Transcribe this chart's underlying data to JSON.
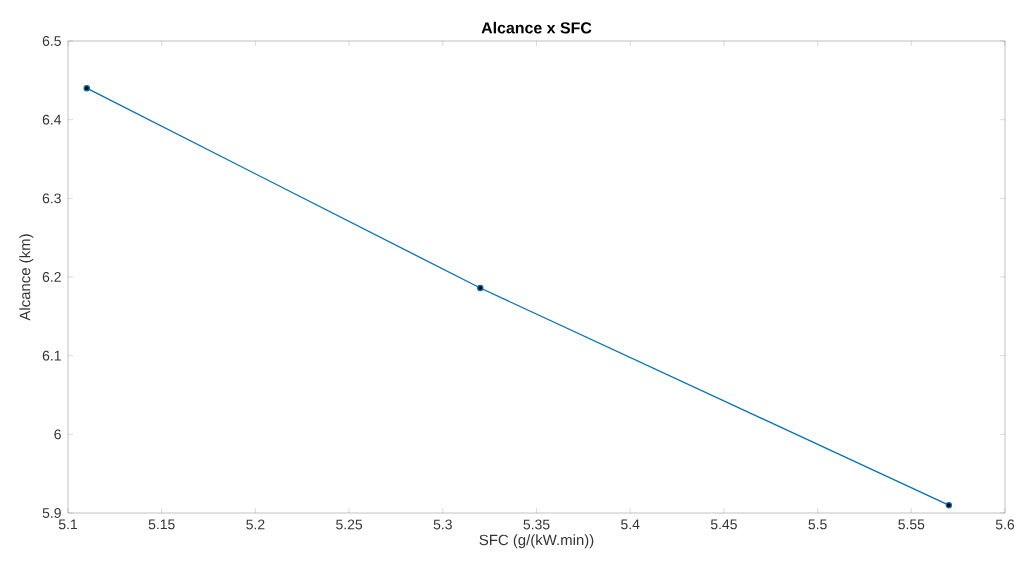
{
  "chart_data": {
    "type": "line",
    "title": "**Alcance x SFC**",
    "xlabel": "SFC (g/(kW.min))",
    "ylabel": "Alcance (km)",
    "x": [
      5.11,
      5.32,
      5.57
    ],
    "series": [
      {
        "color": "#0072bd",
        "values": [
          6.44,
          6.186,
          5.91
        ]
      }
    ],
    "marker": "circle",
    "line_style": "solid",
    "grid": false,
    "xlim": [
      5.1,
      5.6
    ],
    "xticks": [
      5.1,
      5.15,
      5.2,
      5.25,
      5.3,
      5.35,
      5.4,
      5.45,
      5.5,
      5.55,
      5.6
    ],
    "ylim": [
      5.9,
      6.5
    ],
    "yticks": [
      5.9,
      6,
      6.1,
      6.2,
      6.3,
      6.4,
      6.5
    ]
  }
}
